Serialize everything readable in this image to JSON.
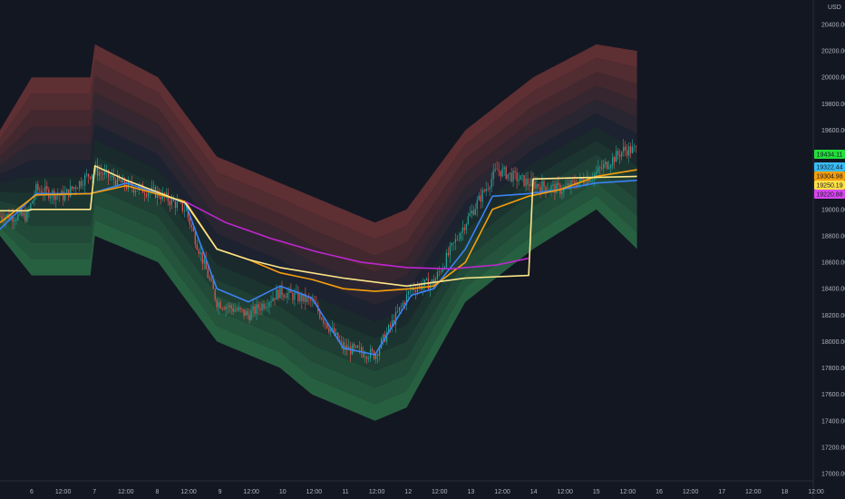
{
  "chart_data": {
    "type": "line",
    "title": "",
    "currency": "USD",
    "ylim": [
      16900,
      20600
    ],
    "y_ticks": [
      "17000.00",
      "17200.00",
      "17400.00",
      "17600.00",
      "17800.00",
      "18000.00",
      "18200.00",
      "18400.00",
      "18600.00",
      "18800.00",
      "19000.00",
      "19200.00",
      "19400.00",
      "19600.00",
      "19800.00",
      "20000.00",
      "20200.00",
      "20400.00"
    ],
    "x_ticks": [
      "6",
      "12:00",
      "7",
      "12:00",
      "8",
      "12:00",
      "9",
      "12:00",
      "10",
      "12:00",
      "11",
      "12:00",
      "12",
      "12:00",
      "13",
      "12:00",
      "14",
      "12:00",
      "15",
      "12:00",
      "16",
      "12:00",
      "17",
      "12:00",
      "18",
      "12:00"
    ],
    "x_range_bars": [
      0,
      900
    ],
    "price_x": [
      0,
      30,
      40,
      70,
      105,
      140,
      175,
      205,
      240,
      275,
      310,
      345,
      380,
      415,
      455,
      480,
      515,
      550,
      585,
      620,
      655,
      690,
      705
    ],
    "price_close": [
      18950,
      18950,
      19150,
      19100,
      19300,
      19180,
      19120,
      19000,
      18300,
      18200,
      18380,
      18300,
      17950,
      17900,
      18400,
      18450,
      18900,
      19300,
      19200,
      19150,
      19250,
      19450,
      19450
    ],
    "bands_x": [
      0,
      35,
      100,
      105,
      175,
      240,
      310,
      345,
      380,
      415,
      450,
      515,
      590,
      660,
      705
    ],
    "bands_top": [
      19600,
      20000,
      20000,
      20250,
      20000,
      19400,
      19200,
      19100,
      19000,
      18900,
      19000,
      19600,
      20000,
      20250,
      20200
    ],
    "bands_bottom": [
      18800,
      18500,
      18500,
      18800,
      18600,
      18000,
      17800,
      17600,
      17500,
      17400,
      17500,
      18300,
      18700,
      19000,
      18700
    ],
    "series": [
      {
        "name": "",
        "color": "#3b82f6",
        "x": [
          0,
          40,
          100,
          140,
          205,
          240,
          275,
          310,
          345,
          380,
          415,
          455,
          480,
          515,
          545,
          585,
          620,
          660,
          705
        ],
        "values": [
          18850,
          19120,
          19120,
          19200,
          19050,
          18400,
          18300,
          18420,
          18330,
          17950,
          17900,
          18350,
          18400,
          18700,
          19100,
          19120,
          19150,
          19200,
          19220
        ]
      },
      {
        "name": "",
        "color": "#f59e0b",
        "x": [
          0,
          40,
          100,
          140,
          205,
          240,
          275,
          310,
          345,
          380,
          415,
          455,
          480,
          515,
          545,
          585,
          620,
          660,
          705
        ],
        "values": [
          18900,
          19110,
          19120,
          19180,
          19060,
          18700,
          18620,
          18520,
          18470,
          18400,
          18380,
          18400,
          18420,
          18600,
          19000,
          19100,
          19150,
          19250,
          19300
        ]
      },
      {
        "name": "",
        "color": "#fde68a",
        "x": [
          0,
          30,
          35,
          100,
          105,
          140,
          205,
          240,
          275,
          310,
          380,
          450,
          515,
          585,
          590,
          640,
          705
        ],
        "values": [
          18990,
          18990,
          19000,
          19000,
          19330,
          19220,
          19050,
          18700,
          18620,
          18560,
          18480,
          18420,
          18480,
          18500,
          19230,
          19240,
          19250
        ]
      },
      {
        "name": "",
        "color": "#c026d3",
        "x": [
          205,
          250,
          300,
          350,
          400,
          450,
          500,
          550,
          585
        ],
        "values": [
          19060,
          18900,
          18780,
          18680,
          18600,
          18560,
          18550,
          18580,
          18630
        ]
      }
    ],
    "last_values": [
      {
        "label": "19434.11",
        "color": "#22e03a"
      },
      {
        "label": "19322.44",
        "color": "#38bdf8"
      },
      {
        "label": "19304.98",
        "color": "#f59e0b"
      },
      {
        "label": "19250.19",
        "color": "#fde047"
      },
      {
        "label": "19220.88",
        "color": "#d946ef"
      }
    ],
    "grid": false,
    "legend": "none"
  }
}
